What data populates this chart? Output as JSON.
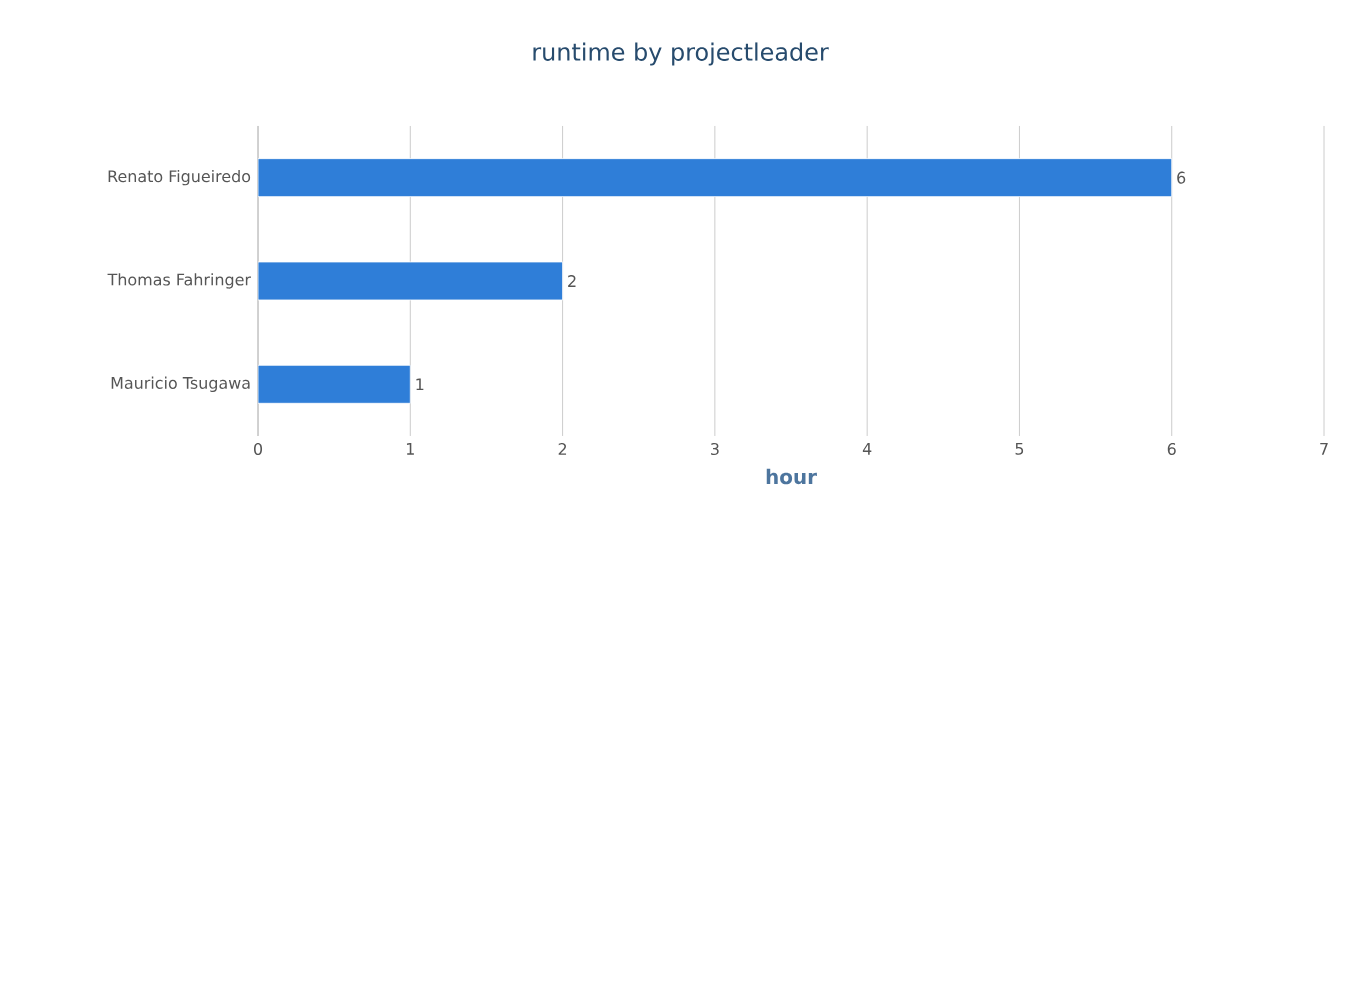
{
  "chart_data": {
    "type": "bar",
    "orientation": "horizontal",
    "title": "runtime by projectleader",
    "xlabel": "hour",
    "categories": [
      "Renato Figueiredo",
      "Thomas Fahringer",
      "Mauricio Tsugawa"
    ],
    "values": [
      6,
      2,
      1
    ],
    "color": "#2f7ed8",
    "data_labels": true,
    "xlim": [
      0,
      7
    ],
    "xticks": [
      0,
      1,
      2,
      3,
      4,
      5,
      6,
      7
    ],
    "grid": "x"
  }
}
